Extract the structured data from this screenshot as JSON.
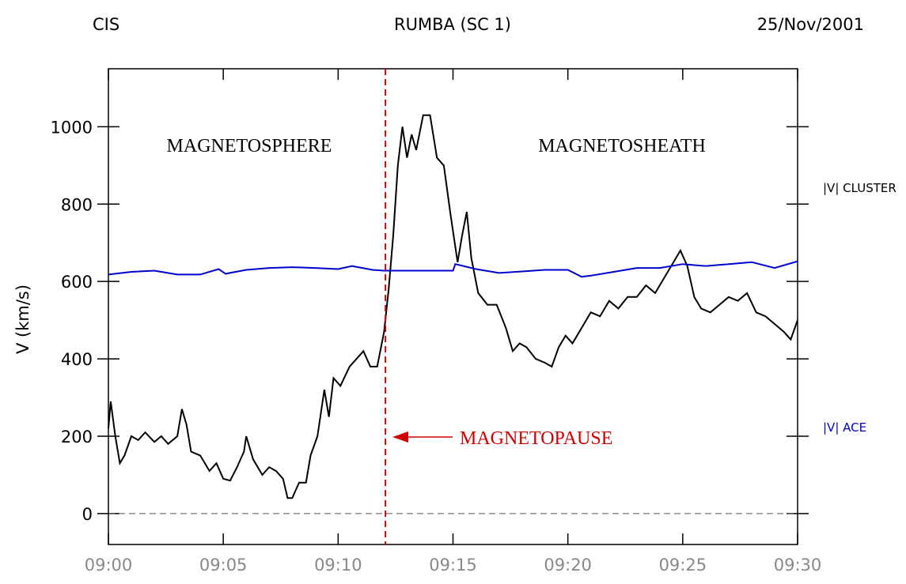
{
  "chart_data": {
    "type": "line",
    "header_left": "CIS",
    "title": "RUMBA (SC 1)",
    "header_right": "25/Nov/2001",
    "y_label": "V (km/s)",
    "xlim": [
      0,
      30
    ],
    "xticks": [
      {
        "value": 0,
        "label": "09:00"
      },
      {
        "value": 5,
        "label": "09:05"
      },
      {
        "value": 10,
        "label": "09:10"
      },
      {
        "value": 15,
        "label": "09:15"
      },
      {
        "value": 20,
        "label": "09:20"
      },
      {
        "value": 25,
        "label": "09:25"
      },
      {
        "value": 30,
        "label": "09:30"
      }
    ],
    "ylim": [
      -80,
      1150
    ],
    "yticks": [
      0,
      200,
      400,
      600,
      800,
      1000
    ],
    "hlines": [
      0
    ],
    "vlines": [
      12.06
    ],
    "annotations": [
      "MAGNETOSPHERE",
      "MAGNETOSHEATH",
      "MAGNETOPAUSE"
    ],
    "series": [
      {
        "name": "|V| CLUSTER",
        "color": "#000000",
        "x": [
          0,
          0.1,
          0.3,
          0.5,
          0.7,
          1.0,
          1.3,
          1.6,
          2.0,
          2.3,
          2.6,
          3.0,
          3.2,
          3.4,
          3.6,
          4.0,
          4.4,
          4.7,
          5.0,
          5.3,
          5.6,
          5.9,
          6.0,
          6.3,
          6.7,
          7.0,
          7.3,
          7.6,
          7.8,
          8.0,
          8.3,
          8.6,
          8.8,
          9.1,
          9.4,
          9.6,
          9.8,
          10.1,
          10.5,
          10.8,
          11.1,
          11.4,
          11.7,
          12.0,
          12.2,
          12.4,
          12.6,
          12.8,
          13.0,
          13.2,
          13.4,
          13.7,
          14.0,
          14.3,
          14.6,
          14.9,
          15.2,
          15.4,
          15.6,
          15.8,
          16.1,
          16.5,
          16.9,
          17.3,
          17.6,
          17.9,
          18.2,
          18.6,
          19.0,
          19.3,
          19.6,
          19.9,
          20.2,
          20.6,
          21.0,
          21.4,
          21.8,
          22.2,
          22.6,
          23.0,
          23.4,
          23.8,
          24.2,
          24.6,
          24.9,
          25.2,
          25.5,
          25.8,
          26.2,
          26.6,
          27.0,
          27.4,
          27.8,
          28.2,
          28.6,
          29.0,
          29.4,
          29.7,
          30.0
        ],
        "values": [
          220,
          290,
          200,
          130,
          150,
          200,
          190,
          210,
          185,
          200,
          180,
          200,
          270,
          230,
          160,
          150,
          110,
          130,
          90,
          85,
          120,
          160,
          200,
          140,
          100,
          120,
          110,
          90,
          40,
          40,
          80,
          80,
          150,
          200,
          320,
          250,
          350,
          330,
          380,
          400,
          420,
          380,
          380,
          470,
          580,
          720,
          900,
          1000,
          920,
          980,
          940,
          1030,
          1030,
          920,
          900,
          770,
          650,
          720,
          780,
          660,
          570,
          540,
          540,
          480,
          420,
          440,
          430,
          400,
          390,
          380,
          430,
          460,
          440,
          480,
          520,
          510,
          550,
          530,
          560,
          560,
          590,
          570,
          610,
          650,
          680,
          640,
          560,
          530,
          520,
          540,
          560,
          550,
          570,
          520,
          510,
          490,
          470,
          450,
          500
        ]
      },
      {
        "name": "|V| ACE",
        "color": "#0000cc",
        "x": [
          0,
          1,
          2,
          3,
          4,
          4.8,
          5.1,
          6,
          7,
          8,
          9,
          10,
          10.6,
          11.5,
          12,
          14,
          15,
          15.1,
          16,
          17,
          18,
          19,
          20,
          20.6,
          21,
          22,
          23,
          24,
          25,
          26,
          27,
          28,
          29,
          30
        ],
        "values": [
          618,
          625,
          628,
          618,
          618,
          632,
          620,
          630,
          635,
          637,
          635,
          632,
          640,
          630,
          628,
          628,
          628,
          645,
          632,
          622,
          626,
          630,
          630,
          612,
          615,
          625,
          635,
          635,
          645,
          640,
          645,
          650,
          635,
          652
        ]
      }
    ]
  }
}
